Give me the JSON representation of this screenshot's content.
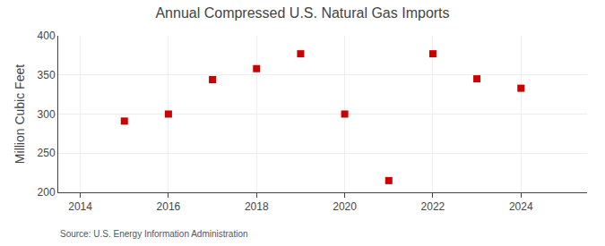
{
  "chart_data": {
    "type": "scatter",
    "title": "Annual Compressed U.S. Natural Gas Imports",
    "ylabel": "Million Cubic Feet",
    "annotations": [
      "Source: U.S. Energy Information Administration"
    ],
    "x": [
      2015,
      2016,
      2017,
      2018,
      2019,
      2020,
      2021,
      2022,
      2023,
      2024
    ],
    "values": [
      291,
      300,
      344,
      358,
      377,
      300,
      215,
      377,
      345,
      333
    ],
    "xlim": [
      2013.5,
      2025.5
    ],
    "ylim": [
      200,
      400
    ],
    "xticks": [
      2014,
      2016,
      2018,
      2020,
      2022,
      2024
    ],
    "yticks": [
      200,
      250,
      300,
      350,
      400
    ],
    "color": "#cc0000",
    "marker": "square",
    "grid": true
  }
}
